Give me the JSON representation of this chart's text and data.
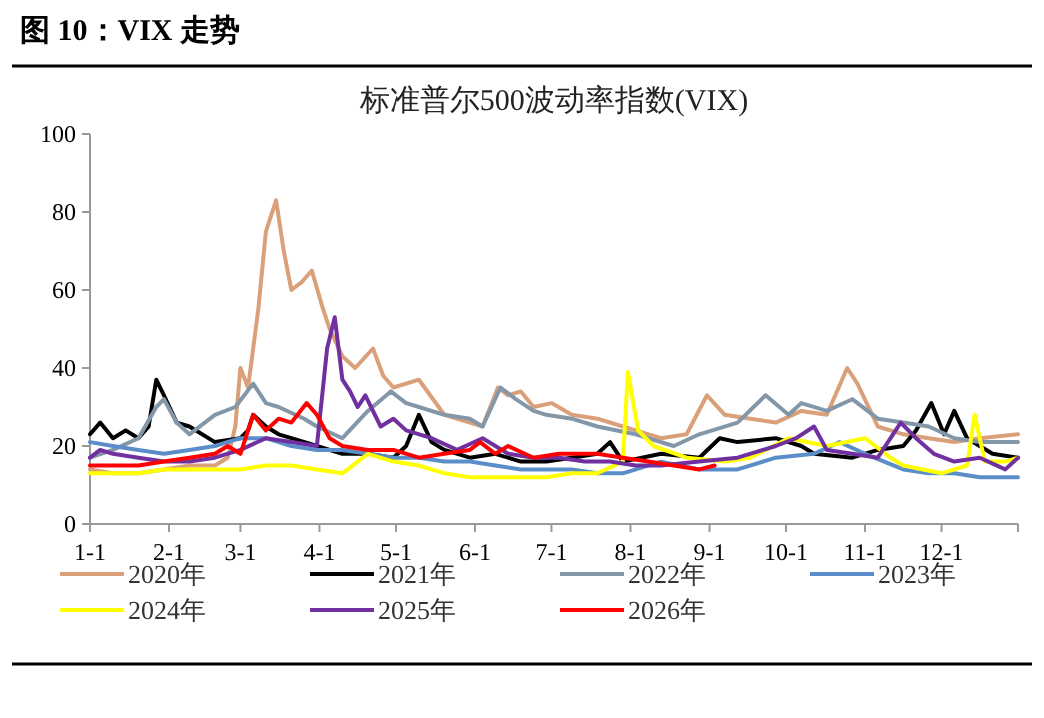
{
  "chart_data": {
    "type": "line",
    "title": "图 10：VIX 走势",
    "subtitle": "标准普尔500波动率指数(VIX)",
    "xlim": [
      "--01-01",
      "--12-31"
    ],
    "xticks": [
      {
        "value": "--01-01",
        "label": "1-1"
      },
      {
        "value": "--02-01",
        "label": "2-1"
      },
      {
        "value": "--03-01",
        "label": "3-1"
      },
      {
        "value": "--04-01",
        "label": "4-1"
      },
      {
        "value": "--05-01",
        "label": "5-1"
      },
      {
        "value": "--06-01",
        "label": "6-1"
      },
      {
        "value": "--07-01",
        "label": "7-1"
      },
      {
        "value": "--08-01",
        "label": "8-1"
      },
      {
        "value": "--09-01",
        "label": "9-1"
      },
      {
        "value": "--10-01",
        "label": "10-1"
      },
      {
        "value": "--11-01",
        "label": "11-1"
      },
      {
        "value": "--12-01",
        "label": "12-1"
      }
    ],
    "ylim": [
      0,
      100
    ],
    "yticks": [
      0,
      20,
      40,
      60,
      80,
      100
    ],
    "grid": false,
    "legend": "bottom",
    "marker": "none",
    "line_style": "solid",
    "series": [
      {
        "name": "2020年",
        "color": "#d9a07a",
        "x": [
          "--01-01",
          "--01-10",
          "--01-20",
          "--01-30",
          "--02-09",
          "--02-19",
          "--02-24",
          "--02-27",
          "--03-01",
          "--03-04",
          "--03-08",
          "--03-11",
          "--03-15",
          "--03-18",
          "--03-21",
          "--03-25",
          "--03-29",
          "--04-02",
          "--04-05",
          "--04-10",
          "--04-15",
          "--04-22",
          "--04-26",
          "--04-30",
          "--05-10",
          "--05-20",
          "--05-30",
          "--06-04",
          "--06-10",
          "--06-14",
          "--06-19",
          "--06-24",
          "--07-01",
          "--07-09",
          "--07-19",
          "--07-29",
          "--08-03",
          "--08-13",
          "--08-23",
          "--08-31",
          "--09-07",
          "--09-17",
          "--09-27",
          "--10-07",
          "--10-17",
          "--10-25",
          "--10-29",
          "--11-06",
          "--11-16",
          "--11-26",
          "--12-06",
          "--12-16",
          "--12-31"
        ],
        "values": [
          14,
          13,
          13,
          14,
          15,
          15,
          17,
          25,
          40,
          35,
          55,
          75,
          83,
          70,
          60,
          62,
          65,
          56,
          50,
          43,
          40,
          45,
          38,
          35,
          37,
          28,
          26,
          25,
          35,
          33,
          34,
          30,
          31,
          28,
          27,
          25,
          24,
          22,
          23,
          33,
          28,
          27,
          26,
          29,
          28,
          40,
          36,
          25,
          23,
          22,
          21,
          22,
          23
        ]
      },
      {
        "name": "2021年",
        "color": "#000000",
        "x": [
          "--01-01",
          "--01-05",
          "--01-10",
          "--01-15",
          "--01-20",
          "--01-24",
          "--01-27",
          "--01-30",
          "--02-04",
          "--02-09",
          "--02-19",
          "--03-01",
          "--03-04",
          "--03-06",
          "--03-11",
          "--03-16",
          "--03-21",
          "--03-31",
          "--04-10",
          "--04-20",
          "--04-30",
          "--05-05",
          "--05-10",
          "--05-15",
          "--05-20",
          "--05-30",
          "--06-09",
          "--06-19",
          "--06-29",
          "--07-09",
          "--07-19",
          "--07-24",
          "--07-29",
          "--08-13",
          "--08-28",
          "--09-05",
          "--09-12",
          "--09-27",
          "--10-07",
          "--10-12",
          "--10-27",
          "--11-06",
          "--11-16",
          "--11-21",
          "--11-27",
          "--12-02",
          "--12-06",
          "--12-11",
          "--12-21",
          "--12-31"
        ],
        "values": [
          23,
          26,
          22,
          24,
          22,
          25,
          37,
          33,
          26,
          25,
          21,
          22,
          24,
          28,
          25,
          23,
          22,
          20,
          18,
          18,
          17,
          20,
          28,
          21,
          19,
          17,
          18,
          16,
          16,
          17,
          18,
          21,
          16,
          18,
          17,
          22,
          21,
          22,
          20,
          18,
          17,
          19,
          20,
          24,
          31,
          23,
          29,
          22,
          18,
          17
        ]
      },
      {
        "name": "2022年",
        "color": "#8497a8",
        "x": [
          "--01-01",
          "--01-10",
          "--01-20",
          "--01-27",
          "--01-30",
          "--02-04",
          "--02-09",
          "--02-19",
          "--02-27",
          "--03-06",
          "--03-11",
          "--03-16",
          "--03-26",
          "--03-31",
          "--04-10",
          "--04-20",
          "--04-29",
          "--05-05",
          "--05-10",
          "--05-20",
          "--05-30",
          "--06-04",
          "--06-11",
          "--06-17",
          "--06-24",
          "--06-29",
          "--07-09",
          "--07-19",
          "--08-03",
          "--08-18",
          "--08-28",
          "--09-12",
          "--09-23",
          "--10-02",
          "--10-07",
          "--10-17",
          "--10-27",
          "--11-06",
          "--11-16",
          "--11-26",
          "--12-06",
          "--12-16",
          "--12-31"
        ],
        "values": [
          17,
          19,
          22,
          30,
          32,
          26,
          23,
          28,
          30,
          36,
          31,
          30,
          27,
          25,
          22,
          29,
          34,
          31,
          30,
          28,
          27,
          25,
          35,
          32,
          29,
          28,
          27,
          25,
          23,
          20,
          23,
          26,
          33,
          28,
          31,
          29,
          32,
          27,
          26,
          25,
          22,
          21,
          21
        ]
      },
      {
        "name": "2023年",
        "color": "#5b8ec9",
        "x": [
          "--01-01",
          "--01-10",
          "--01-20",
          "--01-30",
          "--02-09",
          "--02-19",
          "--03-01",
          "--03-11",
          "--03-21",
          "--03-31",
          "--04-10",
          "--04-20",
          "--04-30",
          "--05-10",
          "--05-20",
          "--05-30",
          "--06-09",
          "--06-19",
          "--06-29",
          "--07-09",
          "--07-19",
          "--07-29",
          "--08-13",
          "--08-28",
          "--09-12",
          "--09-27",
          "--10-12",
          "--10-22",
          "--11-01",
          "--11-16",
          "--11-26",
          "--12-06",
          "--12-16",
          "--12-31"
        ],
        "values": [
          21,
          20,
          19,
          18,
          19,
          20,
          22,
          22,
          20,
          19,
          19,
          18,
          17,
          17,
          16,
          16,
          15,
          14,
          14,
          14,
          13,
          13,
          16,
          14,
          14,
          17,
          18,
          21,
          18,
          14,
          13,
          13,
          12,
          12
        ]
      },
      {
        "name": "2024年",
        "color": "#ffff00",
        "x": [
          "--01-01",
          "--01-10",
          "--01-20",
          "--01-30",
          "--02-09",
          "--02-19",
          "--03-01",
          "--03-11",
          "--03-21",
          "--03-31",
          "--04-10",
          "--04-20",
          "--04-30",
          "--05-10",
          "--05-20",
          "--05-30",
          "--06-14",
          "--06-29",
          "--07-09",
          "--07-19",
          "--07-29",
          "--07-31",
          "--08-04",
          "--08-10",
          "--08-23",
          "--09-07",
          "--09-17",
          "--10-02",
          "--10-17",
          "--11-01",
          "--11-11",
          "--11-16",
          "--12-01",
          "--12-11",
          "--12-14",
          "--12-18",
          "--12-26",
          "--12-31"
        ],
        "values": [
          13,
          13,
          13,
          14,
          14,
          14,
          14,
          15,
          15,
          14,
          13,
          18,
          16,
          15,
          13,
          12,
          12,
          12,
          13,
          13,
          16,
          39,
          24,
          20,
          17,
          16,
          17,
          22,
          20,
          22,
          17,
          15,
          13,
          15,
          28,
          16,
          16,
          17
        ]
      },
      {
        "name": "2025年",
        "color": "#7030a0",
        "x": [
          "--01-01",
          "--01-05",
          "--01-10",
          "--01-20",
          "--01-30",
          "--02-09",
          "--02-19",
          "--03-01",
          "--03-11",
          "--03-21",
          "--03-31",
          "--04-04",
          "--04-07",
          "--04-10",
          "--04-13",
          "--04-16",
          "--04-19",
          "--04-25",
          "--04-30",
          "--05-05",
          "--05-15",
          "--05-25",
          "--06-04",
          "--06-14",
          "--06-24",
          "--07-04",
          "--07-14",
          "--07-24",
          "--08-03",
          "--08-13",
          "--08-28",
          "--09-12",
          "--09-27",
          "--10-05",
          "--10-12",
          "--10-17",
          "--10-27",
          "--11-06",
          "--11-15",
          "--11-21",
          "--11-28",
          "--12-06",
          "--12-16",
          "--12-26",
          "--12-31"
        ],
        "values": [
          17,
          19,
          18,
          17,
          16,
          16,
          17,
          19,
          22,
          21,
          20,
          45,
          53,
          37,
          34,
          30,
          33,
          25,
          27,
          24,
          22,
          19,
          22,
          18,
          17,
          17,
          16,
          16,
          15,
          15,
          16,
          17,
          20,
          22,
          25,
          19,
          18,
          17,
          26,
          22,
          18,
          16,
          17,
          14,
          17
        ]
      },
      {
        "name": "2026年",
        "color": "#ff0000",
        "x": [
          "--01-01",
          "--01-10",
          "--01-20",
          "--01-30",
          "--02-09",
          "--02-19",
          "--02-24",
          "--03-01",
          "--03-06",
          "--03-11",
          "--03-16",
          "--03-21",
          "--03-27",
          "--03-31",
          "--04-05",
          "--04-10",
          "--04-20",
          "--04-30",
          "--05-10",
          "--05-20",
          "--05-30",
          "--06-03",
          "--06-09",
          "--06-14",
          "--06-24",
          "--07-04",
          "--07-19",
          "--07-29",
          "--08-08",
          "--08-18",
          "--08-28",
          "--09-03"
        ],
        "values": [
          15,
          15,
          15,
          16,
          17,
          18,
          20,
          18,
          28,
          24,
          27,
          26,
          31,
          28,
          22,
          20,
          19,
          19,
          17,
          18,
          19,
          21,
          18,
          20,
          17,
          18,
          18,
          17,
          16,
          15,
          14,
          15
        ]
      }
    ]
  }
}
